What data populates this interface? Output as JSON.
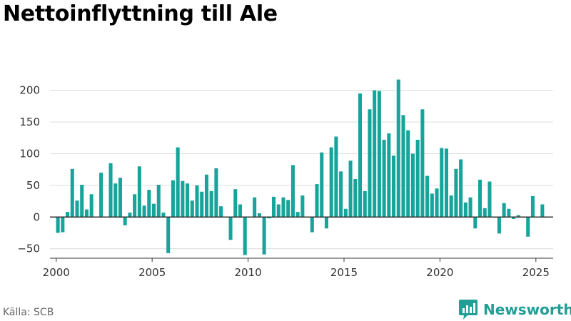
{
  "brand": {
    "name": "Newsworthy",
    "color": "#229e96"
  },
  "source": "Källa: SCB",
  "chart_data": {
    "type": "bar",
    "title": "Nettoinflyttning till Ale",
    "xlabel": "",
    "ylabel": "",
    "bar_color": "#16a49b",
    "ylim": [
      -65,
      230
    ],
    "xlim": [
      1999.6,
      2025.9
    ],
    "y_ticks": [
      -50,
      0,
      50,
      100,
      150,
      200
    ],
    "x_ticks": [
      2000,
      2005,
      2010,
      2015,
      2020,
      2025
    ],
    "grid": "horizontal",
    "x": [
      "2000-Q1",
      "2000-Q2",
      "2000-Q3",
      "2000-Q4",
      "2001-Q1",
      "2001-Q2",
      "2001-Q3",
      "2001-Q4",
      "2002-Q1",
      "2002-Q2",
      "2002-Q3",
      "2002-Q4",
      "2003-Q1",
      "2003-Q2",
      "2003-Q3",
      "2003-Q4",
      "2004-Q1",
      "2004-Q2",
      "2004-Q3",
      "2004-Q4",
      "2005-Q1",
      "2005-Q2",
      "2005-Q3",
      "2005-Q4",
      "2006-Q1",
      "2006-Q2",
      "2006-Q3",
      "2006-Q4",
      "2007-Q1",
      "2007-Q2",
      "2007-Q3",
      "2007-Q4",
      "2008-Q1",
      "2008-Q2",
      "2008-Q3",
      "2008-Q4",
      "2009-Q1",
      "2009-Q2",
      "2009-Q3",
      "2009-Q4",
      "2010-Q1",
      "2010-Q2",
      "2010-Q3",
      "2010-Q4",
      "2011-Q1",
      "2011-Q2",
      "2011-Q3",
      "2011-Q4",
      "2012-Q1",
      "2012-Q2",
      "2012-Q3",
      "2012-Q4",
      "2013-Q1",
      "2013-Q2",
      "2013-Q3",
      "2013-Q4",
      "2014-Q1",
      "2014-Q2",
      "2014-Q3",
      "2014-Q4",
      "2015-Q1",
      "2015-Q2",
      "2015-Q3",
      "2015-Q4",
      "2016-Q1",
      "2016-Q2",
      "2016-Q3",
      "2016-Q4",
      "2017-Q1",
      "2017-Q2",
      "2017-Q3",
      "2017-Q4",
      "2018-Q1",
      "2018-Q2",
      "2018-Q3",
      "2018-Q4",
      "2019-Q1",
      "2019-Q2",
      "2019-Q3",
      "2019-Q4",
      "2020-Q1",
      "2020-Q2",
      "2020-Q3",
      "2020-Q4",
      "2021-Q1",
      "2021-Q2",
      "2021-Q3",
      "2021-Q4",
      "2022-Q1",
      "2022-Q2",
      "2022-Q3",
      "2022-Q4",
      "2023-Q1",
      "2023-Q2",
      "2023-Q3",
      "2023-Q4",
      "2024-Q1",
      "2024-Q2",
      "2024-Q3",
      "2024-Q4",
      "2025-Q1",
      "2025-Q2"
    ],
    "values": [
      -25,
      -24,
      8,
      76,
      26,
      51,
      12,
      36,
      0,
      70,
      0,
      85,
      53,
      62,
      -13,
      7,
      36,
      80,
      18,
      43,
      21,
      51,
      7,
      -57,
      58,
      110,
      57,
      53,
      26,
      50,
      40,
      67,
      41,
      77,
      17,
      0,
      -36,
      44,
      20,
      -60,
      0,
      31,
      6,
      -59,
      -2,
      32,
      20,
      31,
      27,
      82,
      8,
      34,
      0,
      -24,
      52,
      102,
      -18,
      110,
      127,
      72,
      13,
      89,
      60,
      195,
      41,
      170,
      200,
      199,
      122,
      132,
      97,
      217,
      161,
      137,
      100,
      122,
      170,
      65,
      37,
      45,
      109,
      108,
      34,
      76,
      91,
      23,
      31,
      -18,
      59,
      14,
      56,
      -1,
      -26,
      22,
      13,
      -3,
      3,
      -1,
      -31,
      33,
      0,
      20
    ]
  }
}
